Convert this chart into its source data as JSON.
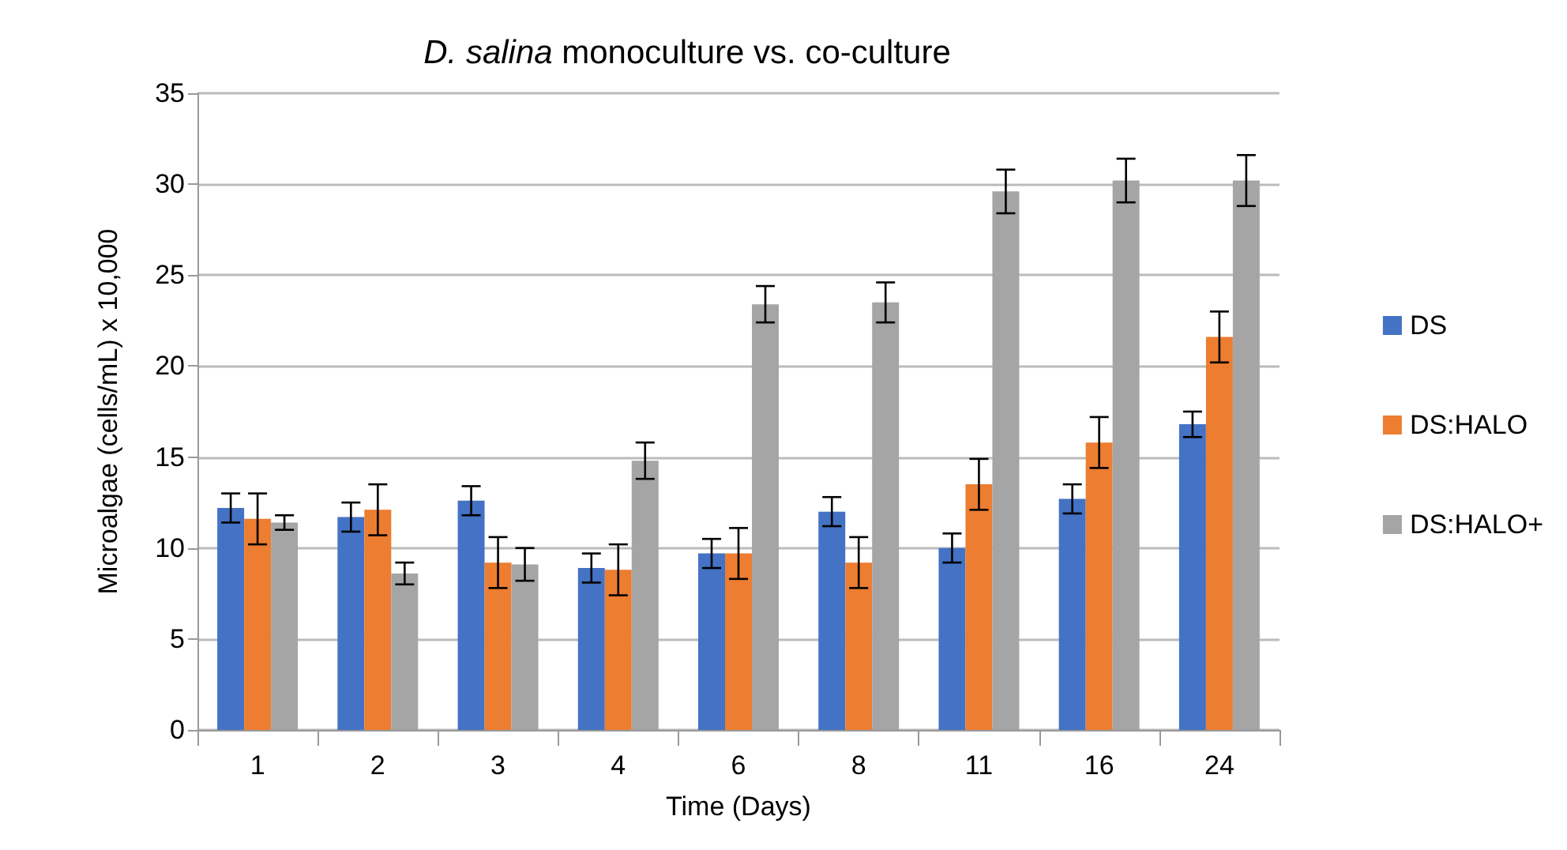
{
  "chart_data": {
    "type": "bar",
    "title": "D. salina monoculture vs. co-culture",
    "xlabel": "Time (Days)",
    "ylabel": "Microalgae (cells/mL) x 10,000",
    "categories": [
      "1",
      "2",
      "3",
      "4",
      "6",
      "8",
      "11",
      "16",
      "24"
    ],
    "series": [
      {
        "name": "DS",
        "color": "#4472c4",
        "values": [
          12.2,
          11.7,
          12.6,
          8.9,
          9.7,
          12.0,
          10.0,
          12.7,
          16.8
        ],
        "errors": [
          0.8,
          0.8,
          0.8,
          0.8,
          0.8,
          0.8,
          0.8,
          0.8,
          0.7
        ]
      },
      {
        "name": "DS:HALO",
        "color": "#ed7d31",
        "values": [
          11.6,
          12.1,
          9.2,
          8.8,
          9.7,
          9.2,
          13.5,
          15.8,
          21.6
        ],
        "errors": [
          1.4,
          1.4,
          1.4,
          1.4,
          1.4,
          1.4,
          1.4,
          1.4,
          1.4
        ]
      },
      {
        "name": "DS:HALO+",
        "color": "#a5a5a5",
        "values": [
          11.4,
          8.6,
          9.1,
          14.8,
          23.4,
          23.5,
          29.6,
          30.2,
          30.2
        ],
        "errors": [
          0.4,
          0.6,
          0.9,
          1.0,
          1.0,
          1.1,
          1.2,
          1.2,
          1.4
        ]
      }
    ],
    "ylim": [
      0,
      35
    ],
    "yticks": [
      0,
      5,
      10,
      15,
      20,
      25,
      30,
      35
    ],
    "grid": "y",
    "legend": "right"
  }
}
